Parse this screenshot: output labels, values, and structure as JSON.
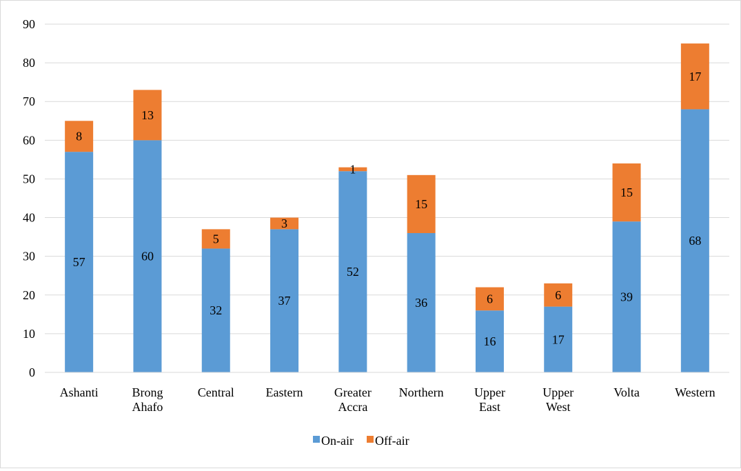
{
  "chart_data": {
    "type": "bar",
    "stacked": true,
    "title": "",
    "xlabel": "",
    "ylabel": "",
    "ylim": [
      0,
      90
    ],
    "y_ticks": [
      0,
      10,
      20,
      30,
      40,
      50,
      60,
      70,
      80,
      90
    ],
    "grid": true,
    "legend_position": "bottom",
    "categories": [
      [
        "Ashanti"
      ],
      [
        "Brong",
        "Ahafo"
      ],
      [
        "Central"
      ],
      [
        "Eastern"
      ],
      [
        "Greater",
        "Accra"
      ],
      [
        "Northern"
      ],
      [
        "Upper",
        "East"
      ],
      [
        "Upper",
        "West"
      ],
      [
        "Volta"
      ],
      [
        "Western"
      ]
    ],
    "series": [
      {
        "name": "On-air",
        "color": "#5b9bd5",
        "values": [
          57,
          60,
          32,
          37,
          52,
          36,
          16,
          17,
          39,
          68
        ]
      },
      {
        "name": "Off-air",
        "color": "#ed7d31",
        "values": [
          8,
          13,
          5,
          3,
          1,
          15,
          6,
          6,
          15,
          17
        ]
      }
    ]
  }
}
